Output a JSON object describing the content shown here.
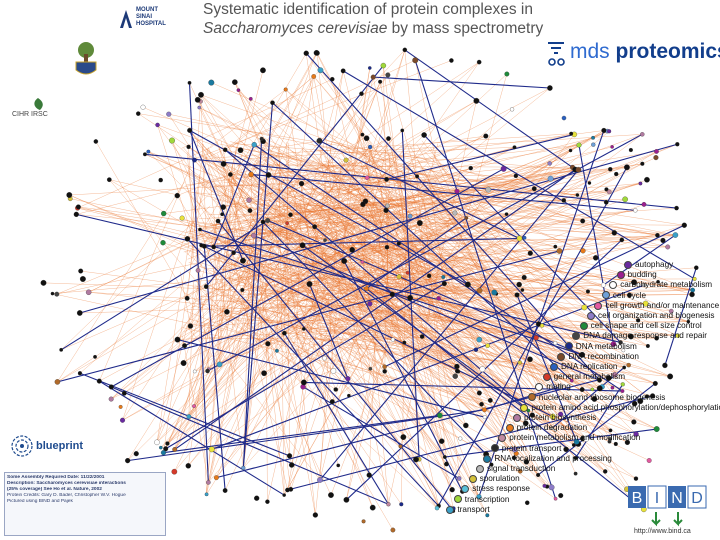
{
  "title": {
    "line1": "Systematic identification of protein complexes in",
    "line2_italic": "Saccharomyces cerevisiae",
    "line2_rest": " by mass spectrometry"
  },
  "logos": {
    "mount_sinai": [
      "MOUNT",
      "SINAI",
      "HOSPITAL"
    ],
    "mds_prefix": "mds",
    "mds_name": "proteomics",
    "blueprint": "blueprint",
    "bind_letters": [
      "B",
      "I",
      "N",
      "D"
    ],
    "bind_url": "http://www.bind.ca"
  },
  "legend": [
    {
      "label": "autophagy",
      "color": "#6a2aa0"
    },
    {
      "label": "budding",
      "color": "#9b1f8f"
    },
    {
      "label": "carbohydrate metabolism",
      "color": "#ffffff"
    },
    {
      "label": "cell cycle",
      "color": "#6fa0d8"
    },
    {
      "label": "cell growth and/or maintenance",
      "color": "#e35aa0"
    },
    {
      "label": "cell organization and biogenesis",
      "color": "#8d7cc8"
    },
    {
      "label": "cell shape and cell size control",
      "color": "#1f8a3a"
    },
    {
      "label": "DNA damage response and repair",
      "color": "#444444"
    },
    {
      "label": "DNA metabolism",
      "color": "#1a2a8a"
    },
    {
      "label": "DNA recombination",
      "color": "#7a4a2a"
    },
    {
      "label": "DNA replication",
      "color": "#2a60c0"
    },
    {
      "label": "general metabolism",
      "color": "#d43a2a"
    },
    {
      "label": "mating",
      "color": "#ffffff"
    },
    {
      "label": "nucleolar and ribosome biogenesis",
      "color": "#b06a2a"
    },
    {
      "label": "protein amino acid phosphorylation/dephosphorylation",
      "color": "#e8e23a"
    },
    {
      "label": "protein biosynthesis",
      "color": "#b07aa0"
    },
    {
      "label": "protein degradation",
      "color": "#e87a1a"
    },
    {
      "label": "protein metabolism and modification",
      "color": "#c08aa0"
    },
    {
      "label": "protein transport",
      "color": "#2a2a2a"
    },
    {
      "label": "RNA localization and processing",
      "color": "#1a7aa0"
    },
    {
      "label": "signal transduction",
      "color": "#b8b8b8"
    },
    {
      "label": "sporulation",
      "color": "#d4c23a"
    },
    {
      "label": "stress response",
      "color": "#5ac0d8"
    },
    {
      "label": "transcription",
      "color": "#a0d83a"
    },
    {
      "label": "transport",
      "color": "#3aa0c8"
    }
  ],
  "infobox": [
    "Some Assembly Required    Date: 11/22/2001",
    "Description: Saccharomyces cerevisiae interactions",
    "(25% coverage) See Ho et al. Nature, 2002",
    "Protein Credits: Gary D. Bader, Christopher W.V. Hogue",
    "Pictured using BIND and Pajek"
  ],
  "colors": {
    "edge_orange": "#e8732a",
    "edge_blue": "#1f2a8a",
    "node_default": "#111111",
    "title_gray": "#555555",
    "mds_blue": "#123e8c"
  }
}
